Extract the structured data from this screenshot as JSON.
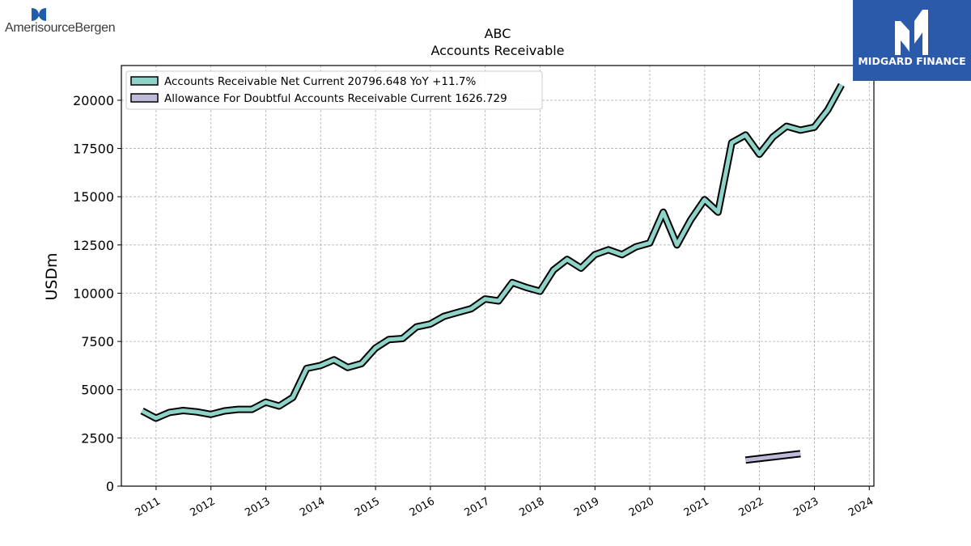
{
  "brand": {
    "left_logo_text": "AmerisourceBergen",
    "right_logo_text": "MIDGARD FINANCE",
    "right_logo_color": "#2b5aab"
  },
  "chart_data": {
    "type": "line",
    "title": "ABC",
    "subtitle": "Accounts Receivable",
    "xlabel": "",
    "ylabel": "USDm",
    "ylim": [
      0,
      21800
    ],
    "xlim": [
      "2010-05-15",
      "2024-02-01"
    ],
    "yticks": [
      0,
      2500,
      5000,
      7500,
      10000,
      12500,
      15000,
      17500,
      20000
    ],
    "xticks": [
      "2011",
      "2012",
      "2013",
      "2014",
      "2015",
      "2016",
      "2017",
      "2018",
      "2019",
      "2020",
      "2021",
      "2022",
      "2023",
      "2024"
    ],
    "grid": true,
    "legend_position": "top-left",
    "series": [
      {
        "name": "Accounts Receivable Net Current",
        "legend_label": "Accounts Receivable Net Current  20796.648 YoY +11.7%",
        "color": "#8dd3c7",
        "points": [
          [
            "2010-09-30",
            3900
          ],
          [
            "2010-12-31",
            3520
          ],
          [
            "2011-03-31",
            3820
          ],
          [
            "2011-06-30",
            3920
          ],
          [
            "2011-09-30",
            3850
          ],
          [
            "2011-12-31",
            3720
          ],
          [
            "2012-03-31",
            3900
          ],
          [
            "2012-06-30",
            3980
          ],
          [
            "2012-09-30",
            3980
          ],
          [
            "2012-12-31",
            4350
          ],
          [
            "2013-03-31",
            4150
          ],
          [
            "2013-06-30",
            4600
          ],
          [
            "2013-09-30",
            6100
          ],
          [
            "2013-12-31",
            6250
          ],
          [
            "2014-03-31",
            6550
          ],
          [
            "2014-06-30",
            6150
          ],
          [
            "2014-09-30",
            6350
          ],
          [
            "2014-12-31",
            7150
          ],
          [
            "2015-03-31",
            7600
          ],
          [
            "2015-06-30",
            7650
          ],
          [
            "2015-09-30",
            8250
          ],
          [
            "2015-12-31",
            8400
          ],
          [
            "2016-03-31",
            8800
          ],
          [
            "2016-06-30",
            9000
          ],
          [
            "2016-09-30",
            9200
          ],
          [
            "2016-12-31",
            9700
          ],
          [
            "2017-03-31",
            9600
          ],
          [
            "2017-06-30",
            10550
          ],
          [
            "2017-09-30",
            10300
          ],
          [
            "2017-12-31",
            10100
          ],
          [
            "2018-03-31",
            11200
          ],
          [
            "2018-06-30",
            11750
          ],
          [
            "2018-09-30",
            11300
          ],
          [
            "2018-12-31",
            12000
          ],
          [
            "2019-03-31",
            12250
          ],
          [
            "2019-06-30",
            12000
          ],
          [
            "2019-09-30",
            12400
          ],
          [
            "2019-12-31",
            12600
          ],
          [
            "2020-03-31",
            14200
          ],
          [
            "2020-06-30",
            12500
          ],
          [
            "2020-09-30",
            13800
          ],
          [
            "2020-12-31",
            14850
          ],
          [
            "2021-03-31",
            14200
          ],
          [
            "2021-06-30",
            17800
          ],
          [
            "2021-09-30",
            18200
          ],
          [
            "2021-12-31",
            17200
          ],
          [
            "2022-03-31",
            18100
          ],
          [
            "2022-06-30",
            18650
          ],
          [
            "2022-09-30",
            18450
          ],
          [
            "2022-12-31",
            18600
          ],
          [
            "2023-03-31",
            19500
          ],
          [
            "2023-06-30",
            20800
          ]
        ]
      },
      {
        "name": "Allowance For Doubtful Accounts Receivable Current",
        "legend_label": "Allowance For Doubtful Accounts Receivable Current  1626.729",
        "color": "#bebada",
        "points": [
          [
            "2021-09-30",
            1350
          ],
          [
            "2022-09-30",
            1680
          ]
        ]
      }
    ]
  }
}
